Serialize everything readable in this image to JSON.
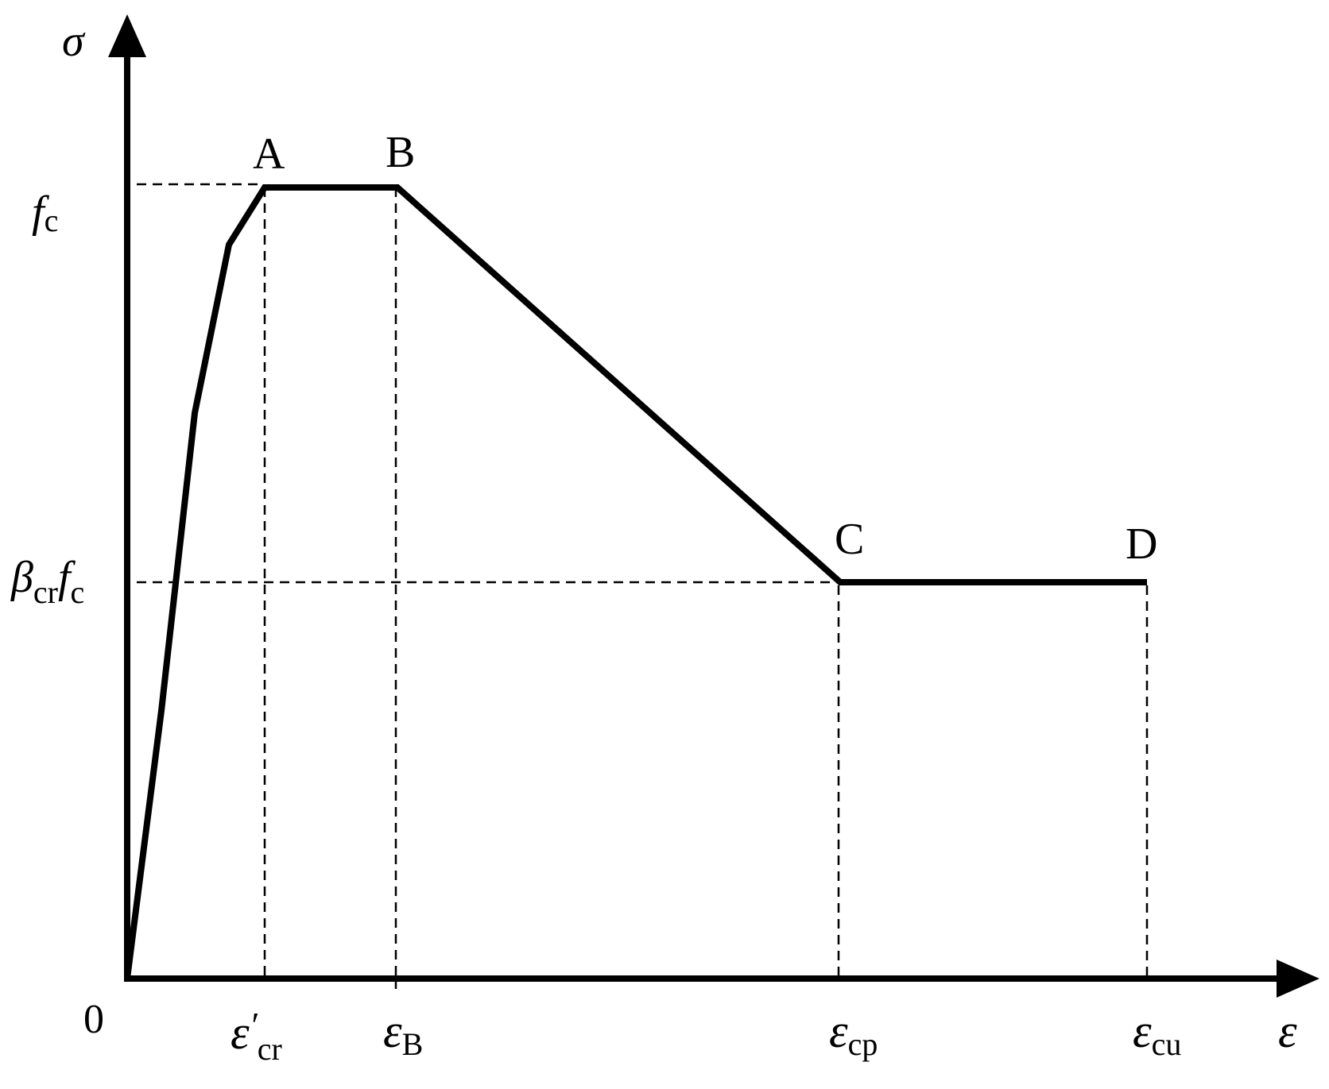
{
  "axes": {
    "y_symbol": "σ",
    "x_symbol": "ε",
    "origin": "0"
  },
  "stress_labels": {
    "fc": {
      "main": "f",
      "sub": "c"
    },
    "beta_cr_fc": {
      "main1": "β",
      "sub1": "cr",
      "main2": "f",
      "sub2": "c"
    }
  },
  "strain_labels": {
    "cr": {
      "main": "ε",
      "prime": "′",
      "sub": "cr"
    },
    "B": {
      "main": "ε",
      "sub": "B"
    },
    "cp": {
      "main": "ε",
      "sub": "cp"
    },
    "cu": {
      "main": "ε",
      "sub": "cu"
    }
  },
  "points": {
    "A": "A",
    "B": "B",
    "C": "C",
    "D": "D"
  },
  "colors": {
    "line": "#000000",
    "background": "#ffffff"
  }
}
